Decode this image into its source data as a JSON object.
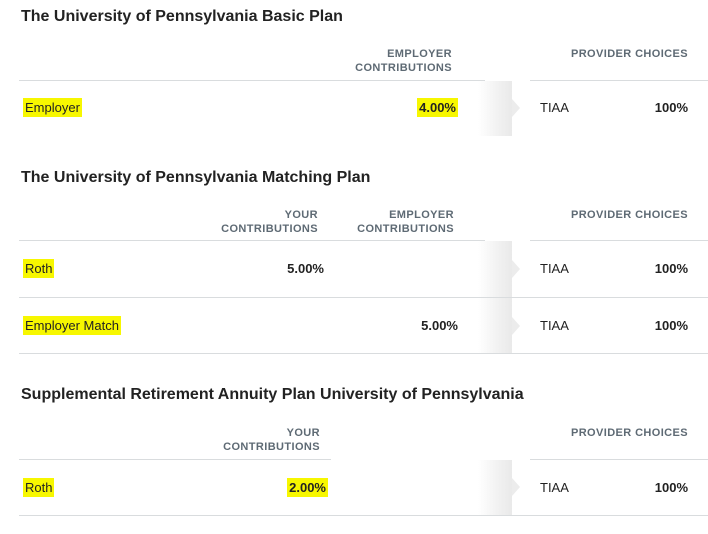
{
  "plans": [
    {
      "title": "The University of Pennsylvania Basic Plan",
      "headers": {
        "employer_contrib_1": "EMPLOYER",
        "employer_contrib_2": "CONTRIBUTIONS",
        "provider": "PROVIDER CHOICES"
      },
      "rows": [
        {
          "label": "Employer",
          "employer_contribution": "4.00%",
          "provider": "TIAA",
          "percent": "100%"
        }
      ]
    },
    {
      "title": "The University of Pennsylvania Matching Plan",
      "headers": {
        "your_contrib_1": "YOUR",
        "your_contrib_2": "CONTRIBUTIONS",
        "employer_contrib_1": "EMPLOYER",
        "employer_contrib_2": "CONTRIBUTIONS",
        "provider": "PROVIDER CHOICES"
      },
      "rows": [
        {
          "label": "Roth",
          "your_contribution": "5.00%",
          "provider": "TIAA",
          "percent": "100%"
        },
        {
          "label": "Employer Match",
          "employer_contribution": "5.00%",
          "provider": "TIAA",
          "percent": "100%"
        }
      ]
    },
    {
      "title": "Supplemental Retirement Annuity Plan University of Pennsylvania",
      "headers": {
        "your_contrib_1": "YOUR",
        "your_contrib_2": "CONTRIBUTIONS",
        "provider": "PROVIDER CHOICES"
      },
      "rows": [
        {
          "label": "Roth",
          "your_contribution": "2.00%",
          "provider": "TIAA",
          "percent": "100%"
        }
      ]
    }
  ],
  "colors": {
    "highlight": "#f7f700",
    "header_text": "#5e6a74",
    "rule": "#d9dcde"
  }
}
